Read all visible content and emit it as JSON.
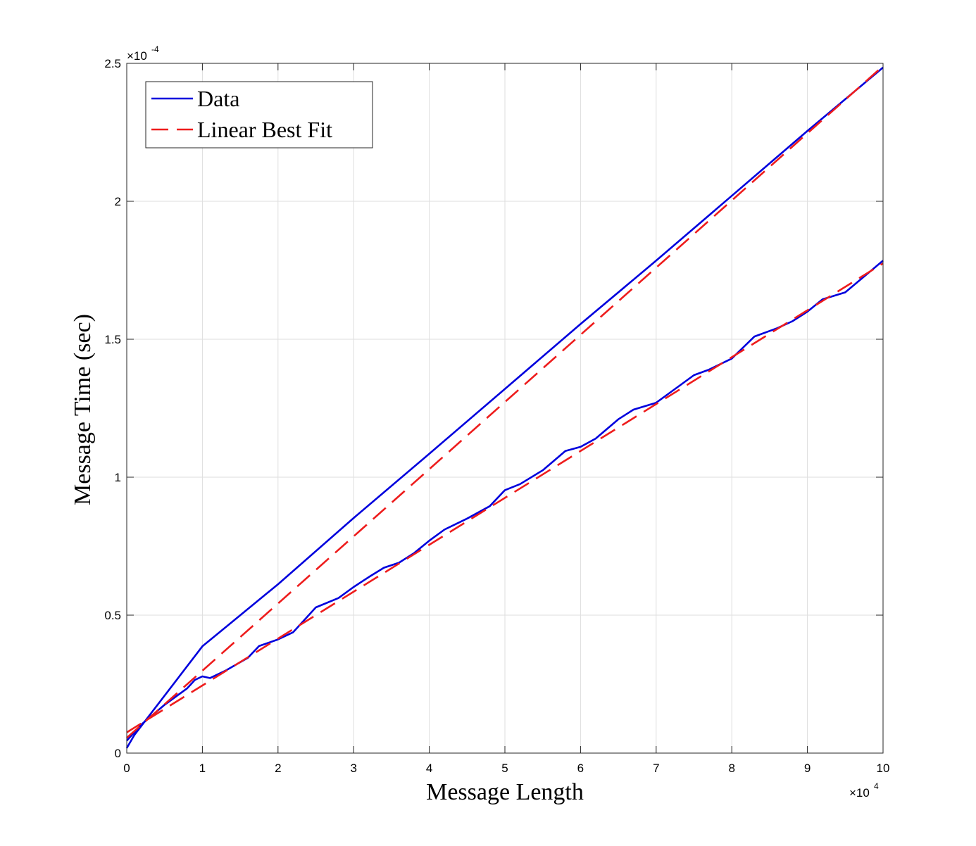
{
  "chart_data": {
    "type": "line",
    "xlabel": "Message Length",
    "ylabel": "Message Time (sec)",
    "xlim": [
      0,
      100000
    ],
    "ylim": [
      0,
      0.00025
    ],
    "x_ticks": [
      "0",
      "1",
      "2",
      "3",
      "4",
      "5",
      "6",
      "7",
      "8",
      "9",
      "10"
    ],
    "y_ticks": [
      "0",
      "0.5",
      "1",
      "1.5",
      "2",
      "2.5"
    ],
    "x_multiplier": {
      "base": "×10",
      "exp": "4"
    },
    "y_multiplier": {
      "base": "×10",
      "exp": "-4"
    },
    "grid": true,
    "legend": {
      "position": "top-left",
      "entries": [
        "Data",
        "Linear Best Fit"
      ]
    },
    "series": [
      {
        "name": "Data",
        "style": "solid",
        "color": "#0000dd",
        "x": [
          0,
          1000,
          10000,
          20000,
          30000,
          40000,
          50000,
          60000,
          70000,
          80000,
          90000,
          100000
        ],
        "y": [
          1.8e-06,
          6.5e-06,
          3.87e-05,
          6.12e-05,
          8.52e-05,
          0.0001085,
          0.000132,
          0.0001555,
          0.0001785,
          0.000202,
          0.0002255,
          0.0002485
        ]
      },
      {
        "name": "Data",
        "style": "solid",
        "color": "#0000dd",
        "x": [
          0,
          2000,
          5000,
          8000,
          9000,
          10000,
          11000,
          13000,
          16000,
          17500,
          20000,
          22000,
          25000,
          28000,
          30000,
          32000,
          34000,
          36000,
          38000,
          40000,
          42000,
          45000,
          48000,
          50000,
          52000,
          55000,
          58000,
          60000,
          62000,
          65000,
          67000,
          70000,
          72000,
          75000,
          77000,
          80000,
          83000,
          86000,
          88000,
          90000,
          92000,
          95000,
          100000
        ],
        "y": [
          4.5e-06,
          1.05e-05,
          1.75e-05,
          2.35e-05,
          2.65e-05,
          2.78e-05,
          2.72e-05,
          2.98e-05,
          3.45e-05,
          3.88e-05,
          4.12e-05,
          4.38e-05,
          5.28e-05,
          5.62e-05,
          6.02e-05,
          6.38e-05,
          6.72e-05,
          6.9e-05,
          7.25e-05,
          7.7e-05,
          8.1e-05,
          8.5e-05,
          8.95e-05,
          9.53e-05,
          9.75e-05,
          0.0001025,
          0.0001095,
          0.000111,
          0.000114,
          0.000121,
          0.0001245,
          0.000127,
          0.000131,
          0.000137,
          0.000139,
          0.000143,
          0.000151,
          0.000154,
          0.0001565,
          0.00016,
          0.0001645,
          0.000167,
          0.0001785
        ]
      },
      {
        "name": "Linear Best Fit",
        "style": "dashed",
        "color": "#ee1c1c",
        "x": [
          0,
          100000
        ],
        "y": [
          5.5e-06,
          0.000249
        ]
      },
      {
        "name": "Linear Best Fit",
        "style": "dashed",
        "color": "#ee1c1c",
        "x": [
          0,
          100000
        ],
        "y": [
          7.5e-06,
          0.0001775
        ]
      }
    ]
  }
}
